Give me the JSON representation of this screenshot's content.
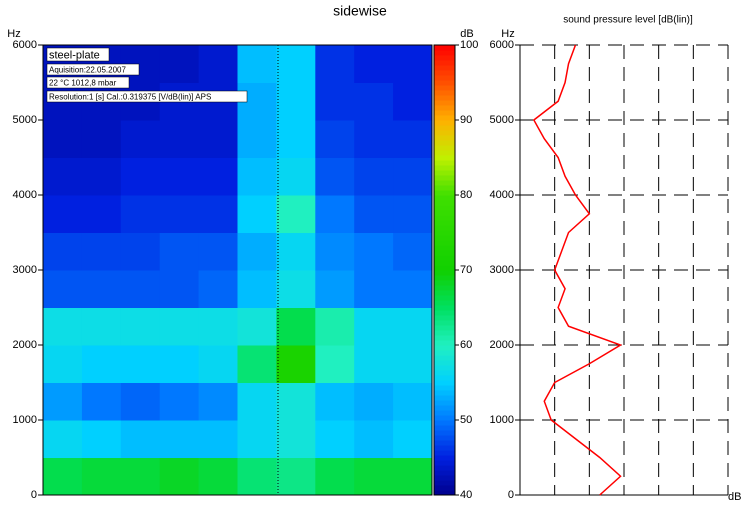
{
  "chart_data": [
    {
      "type": "spectrogram",
      "title": "sidewise",
      "ylabel": "Hz",
      "colorbar_label": "dB",
      "ylim": [
        0,
        6000
      ],
      "yticks": [
        0,
        1000,
        2000,
        3000,
        4000,
        5000,
        6000
      ],
      "freq_bins": [
        0,
        500,
        1000,
        1500,
        2000,
        2500,
        3000,
        3500,
        4000,
        4500,
        5000,
        5500,
        6000
      ],
      "values": [
        [
          66,
          67,
          67,
          68,
          67,
          64,
          63,
          66,
          67,
          67
        ],
        [
          56,
          55,
          54,
          54,
          54,
          56,
          58,
          55,
          54,
          55
        ],
        [
          52,
          50,
          49,
          50,
          51,
          56,
          58,
          54,
          53,
          54
        ],
        [
          56,
          55,
          55,
          55,
          56,
          64,
          72,
          60,
          56,
          56
        ],
        [
          57,
          57,
          57,
          57,
          57,
          58,
          66,
          61,
          56,
          56
        ],
        [
          48,
          48,
          48,
          48,
          49,
          54,
          57,
          52,
          50,
          50
        ],
        [
          47,
          47,
          47,
          48,
          48,
          53,
          56,
          51,
          50,
          49
        ],
        [
          45,
          45,
          46,
          46,
          46,
          55,
          60,
          50,
          48,
          48
        ],
        [
          44,
          44,
          45,
          45,
          45,
          54,
          56,
          48,
          47,
          47
        ],
        [
          43,
          43,
          44,
          44,
          44,
          53,
          55,
          47,
          46,
          46
        ],
        [
          43,
          43,
          43,
          44,
          44,
          53,
          55,
          46,
          46,
          45
        ],
        [
          43,
          43,
          43,
          43,
          44,
          54,
          55,
          46,
          45,
          45
        ]
      ],
      "clim": [
        40,
        100
      ],
      "cticks": [
        40,
        50,
        60,
        70,
        80,
        90,
        100
      ],
      "colormap": [
        {
          "value": 40,
          "color": "#00008c"
        },
        {
          "value": 45,
          "color": "#0020e0"
        },
        {
          "value": 50,
          "color": "#0078ff"
        },
        {
          "value": 55,
          "color": "#00d0ff"
        },
        {
          "value": 60,
          "color": "#20f0c0"
        },
        {
          "value": 65,
          "color": "#00e060"
        },
        {
          "value": 70,
          "color": "#10d000"
        },
        {
          "value": 80,
          "color": "#40e000"
        },
        {
          "value": 85,
          "color": "#c0f000"
        },
        {
          "value": 90,
          "color": "#ffb000"
        },
        {
          "value": 95,
          "color": "#ff5000"
        },
        {
          "value": 100,
          "color": "#ff0000"
        }
      ],
      "annotations": [
        "steel-plate",
        "Aquisition:22.05.2007",
        "22 °C  1012,8 mbar",
        "Resolution:1 [s]    Cal.:0.319375 [V/dB(lin)]       APS"
      ]
    },
    {
      "type": "line",
      "title": "sound pressure level [dB(lin)]",
      "ylabel": "Hz",
      "xlabel": "dB",
      "color": "#ff0000",
      "ylim": [
        0,
        6000
      ],
      "yticks": [
        0,
        1000,
        2000,
        3000,
        4000,
        5000,
        6000
      ],
      "xlim": [
        30,
        90
      ],
      "xticks": [
        40,
        50,
        60,
        70,
        80,
        90
      ],
      "grid": true,
      "freqs": [
        0,
        250,
        500,
        750,
        1000,
        1250,
        1500,
        1750,
        2000,
        2250,
        2500,
        2750,
        3000,
        3250,
        3500,
        3750,
        4000,
        4250,
        4500,
        4750,
        5000,
        5250,
        5500,
        5750,
        6000
      ],
      "values": [
        53,
        59,
        53,
        46,
        39,
        37,
        40,
        50,
        59,
        44,
        41,
        43,
        40,
        42,
        44,
        50,
        46,
        43,
        41,
        37,
        34,
        41,
        43,
        44,
        46
      ]
    }
  ]
}
